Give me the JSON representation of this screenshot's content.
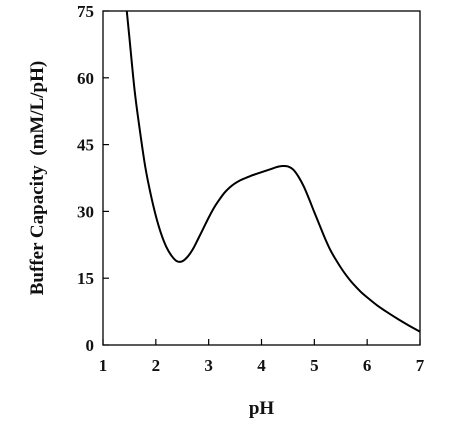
{
  "chart_data": {
    "type": "line",
    "title": "",
    "xlabel": "pH",
    "ylabel": "Buffer Capacity  (mM/L/pH)",
    "xlim": [
      1,
      7
    ],
    "ylim": [
      0,
      75
    ],
    "xticks": [
      1,
      2,
      3,
      4,
      5,
      6,
      7
    ],
    "xtick_labels": [
      "1",
      "2",
      "3",
      "4",
      "5",
      "6",
      "7"
    ],
    "yticks": [
      0,
      15,
      30,
      45,
      60,
      75
    ],
    "ytick_labels": [
      "0",
      "15",
      "30",
      "45",
      "60",
      "75"
    ],
    "grid": false,
    "legend": "none",
    "series": [
      {
        "x": [
          1.45,
          1.5,
          1.6,
          1.7,
          1.8,
          1.9,
          2.0,
          2.1,
          2.2,
          2.3,
          2.4,
          2.5,
          2.6,
          2.7,
          2.8,
          2.9,
          3.0,
          3.1,
          3.2,
          3.3,
          3.4,
          3.5,
          3.6,
          3.7,
          3.8,
          3.9,
          4.0,
          4.1,
          4.2,
          4.3,
          4.4,
          4.5,
          4.6,
          4.7,
          4.8,
          4.9,
          5.0,
          5.1,
          5.2,
          5.3,
          5.4,
          5.5,
          5.6,
          5.7,
          5.8,
          5.9,
          6.0,
          6.2,
          6.4,
          6.6,
          6.8,
          7.0
        ],
        "values": [
          75,
          69,
          57,
          48,
          40,
          34,
          29,
          25,
          22,
          20,
          18.8,
          18.8,
          19.8,
          21.5,
          23.8,
          26.2,
          28.6,
          30.8,
          32.6,
          34.2,
          35.4,
          36.3,
          37.0,
          37.5,
          38.0,
          38.4,
          38.8,
          39.2,
          39.6,
          40.0,
          40.2,
          40.1,
          39.4,
          37.8,
          35.6,
          32.8,
          29.8,
          26.9,
          24.0,
          21.4,
          19.3,
          17.4,
          15.7,
          14.2,
          12.9,
          11.7,
          10.7,
          8.8,
          7.2,
          5.7,
          4.3,
          3.0
        ],
        "color": "#000000"
      }
    ]
  }
}
